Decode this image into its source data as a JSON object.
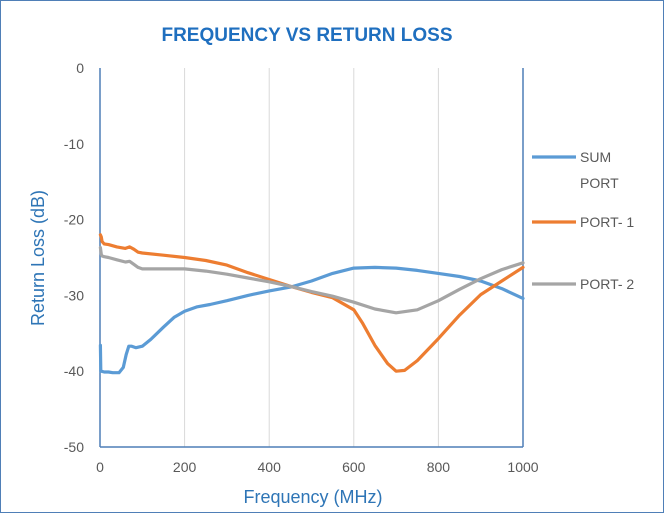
{
  "chart_data": {
    "type": "line",
    "title": "FREQUENCY VS RETURN LOSS",
    "xlabel": "Frequency (MHz)",
    "ylabel": "Return Loss (dB)",
    "xlim": [
      0,
      1000
    ],
    "ylim": [
      -50,
      0
    ],
    "xticks": [
      "0",
      "200",
      "400",
      "600",
      "800",
      "1000"
    ],
    "yticks": [
      "0",
      "-10",
      "-20",
      "-30",
      "-40",
      "-50"
    ],
    "grid": "vertical",
    "legend_position": "right",
    "series": [
      {
        "name": "SUM PORT",
        "legend_lines": [
          "SUM",
          "PORT"
        ],
        "color": "#5b9bd5",
        "x": [
          1,
          2,
          3,
          10,
          20,
          30,
          45,
          55,
          62,
          68,
          75,
          85,
          100,
          120,
          150,
          175,
          200,
          230,
          260,
          300,
          350,
          400,
          450,
          500,
          550,
          600,
          650,
          700,
          750,
          800,
          850,
          900,
          950,
          1000
        ],
        "y": [
          -36.6,
          -40.0,
          -40.0,
          -40.1,
          -40.1,
          -40.2,
          -40.2,
          -39.5,
          -37.8,
          -36.7,
          -36.7,
          -36.9,
          -36.7,
          -35.8,
          -34.2,
          -32.9,
          -32.1,
          -31.5,
          -31.2,
          -30.7,
          -30.0,
          -29.4,
          -28.9,
          -28.1,
          -27.1,
          -26.4,
          -26.3,
          -26.4,
          -26.7,
          -27.1,
          -27.5,
          -28.1,
          -29.1,
          -30.4
        ]
      },
      {
        "name": "PORT- 1",
        "legend_lines": [
          "PORT- 1"
        ],
        "color": "#ed7d31",
        "x": [
          1,
          3,
          5,
          10,
          20,
          40,
          60,
          70,
          80,
          90,
          100,
          150,
          200,
          250,
          300,
          350,
          400,
          450,
          500,
          550,
          600,
          620,
          650,
          680,
          700,
          720,
          750,
          800,
          850,
          900,
          950,
          1000
        ],
        "y": [
          -22.0,
          -22.3,
          -22.9,
          -23.2,
          -23.3,
          -23.6,
          -23.8,
          -23.6,
          -23.9,
          -24.3,
          -24.4,
          -24.7,
          -25.0,
          -25.4,
          -26.0,
          -27.0,
          -27.9,
          -28.8,
          -29.6,
          -30.3,
          -31.9,
          -33.6,
          -36.6,
          -39.0,
          -40.0,
          -39.9,
          -38.6,
          -35.7,
          -32.6,
          -29.9,
          -28.1,
          -26.3
        ]
      },
      {
        "name": "PORT- 2",
        "legend_lines": [
          "PORT- 2"
        ],
        "color": "#a5a5a5",
        "x": [
          1,
          3,
          5,
          10,
          20,
          40,
          60,
          70,
          80,
          90,
          100,
          150,
          200,
          250,
          300,
          350,
          400,
          450,
          500,
          550,
          600,
          650,
          700,
          750,
          800,
          850,
          900,
          950,
          1000
        ],
        "y": [
          -23.7,
          -24.6,
          -24.8,
          -24.9,
          -25.0,
          -25.3,
          -25.6,
          -25.5,
          -25.9,
          -26.3,
          -26.5,
          -26.5,
          -26.5,
          -26.8,
          -27.2,
          -27.7,
          -28.2,
          -28.8,
          -29.5,
          -30.1,
          -30.9,
          -31.8,
          -32.3,
          -31.9,
          -30.7,
          -29.2,
          -27.8,
          -26.6,
          -25.7
        ]
      }
    ]
  }
}
